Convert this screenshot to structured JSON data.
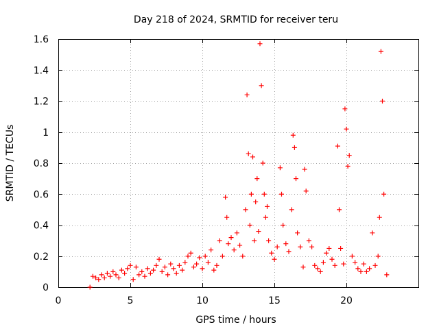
{
  "chart_data": {
    "type": "scatter",
    "title": "Day 218 of 2024, SRMTID for receiver teru",
    "xlabel": "GPS time / hours",
    "ylabel": "SRMTID / TECUs",
    "xlim": [
      0,
      25
    ],
    "ylim": [
      0,
      1.6
    ],
    "xticks": [
      0,
      5,
      10,
      15,
      20
    ],
    "xtick_labels": [
      "0",
      "5",
      "10",
      "15",
      "20"
    ],
    "yticks": [
      0,
      0.2,
      0.4,
      0.6,
      0.8,
      1.0,
      1.2,
      1.4,
      1.6
    ],
    "ytick_labels": [
      "0",
      "0.2",
      "0.4",
      "0.6",
      "0.8",
      "1",
      "1.2",
      "1.4",
      "1.6"
    ],
    "grid": true,
    "marker": "+",
    "series_color": "#ff0000",
    "series": [
      {
        "name": "SRMTID",
        "x": [
          2.2,
          2.4,
          2.6,
          2.8,
          3.0,
          3.2,
          3.4,
          3.6,
          3.8,
          4.0,
          4.2,
          4.4,
          4.6,
          4.8,
          5.0,
          5.2,
          5.4,
          5.6,
          5.8,
          6.0,
          6.2,
          6.4,
          6.6,
          6.8,
          7.0,
          7.2,
          7.4,
          7.6,
          7.8,
          8.0,
          8.2,
          8.4,
          8.6,
          8.8,
          9.0,
          9.2,
          9.4,
          9.6,
          9.8,
          10.0,
          10.2,
          10.4,
          10.6,
          10.8,
          11.0,
          11.2,
          11.4,
          11.6,
          11.7,
          11.8,
          12.0,
          12.2,
          12.4,
          12.6,
          12.8,
          13.0,
          13.1,
          13.2,
          13.3,
          13.4,
          13.5,
          13.6,
          13.7,
          13.8,
          13.9,
          14.0,
          14.1,
          14.2,
          14.3,
          14.4,
          14.5,
          14.6,
          14.8,
          15.0,
          15.2,
          15.4,
          15.5,
          15.6,
          15.8,
          16.0,
          16.2,
          16.3,
          16.4,
          16.5,
          16.6,
          16.8,
          17.0,
          17.1,
          17.2,
          17.4,
          17.6,
          17.8,
          18.0,
          18.2,
          18.4,
          18.6,
          18.8,
          19.0,
          19.2,
          19.4,
          19.5,
          19.6,
          19.8,
          19.9,
          20.0,
          20.1,
          20.2,
          20.4,
          20.6,
          20.8,
          21.0,
          21.2,
          21.4,
          21.6,
          21.8,
          22.0,
          22.2,
          22.3,
          22.4,
          22.5,
          22.6,
          22.8
        ],
        "y": [
          0.0,
          0.07,
          0.06,
          0.05,
          0.08,
          0.06,
          0.09,
          0.07,
          0.1,
          0.08,
          0.06,
          0.11,
          0.09,
          0.12,
          0.14,
          0.05,
          0.13,
          0.08,
          0.1,
          0.07,
          0.12,
          0.09,
          0.11,
          0.14,
          0.18,
          0.1,
          0.13,
          0.08,
          0.15,
          0.12,
          0.09,
          0.14,
          0.11,
          0.16,
          0.2,
          0.22,
          0.13,
          0.15,
          0.19,
          0.12,
          0.2,
          0.16,
          0.24,
          0.11,
          0.14,
          0.3,
          0.2,
          0.58,
          0.45,
          0.28,
          0.32,
          0.24,
          0.35,
          0.27,
          0.2,
          0.5,
          1.24,
          0.86,
          0.4,
          0.6,
          0.84,
          0.3,
          0.55,
          0.7,
          0.36,
          1.57,
          1.3,
          0.8,
          0.6,
          0.45,
          0.52,
          0.3,
          0.22,
          0.18,
          0.26,
          0.77,
          0.6,
          0.4,
          0.28,
          0.23,
          0.5,
          0.98,
          0.9,
          0.7,
          0.35,
          0.26,
          0.13,
          0.76,
          0.62,
          0.3,
          0.26,
          0.14,
          0.12,
          0.1,
          0.16,
          0.22,
          0.25,
          0.18,
          0.14,
          0.91,
          0.5,
          0.25,
          0.15,
          1.15,
          1.02,
          0.78,
          0.85,
          0.2,
          0.16,
          0.12,
          0.1,
          0.15,
          0.1,
          0.12,
          0.35,
          0.14,
          0.2,
          0.45,
          1.52,
          1.2,
          0.6,
          0.08
        ]
      }
    ]
  }
}
